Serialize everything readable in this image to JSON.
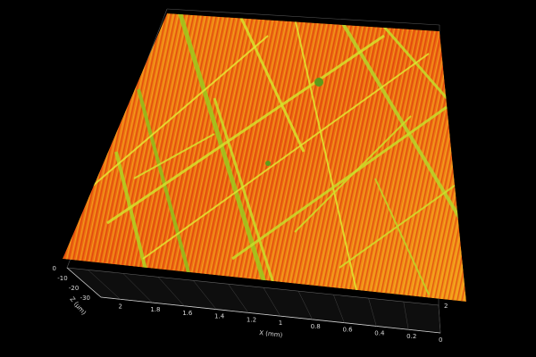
{
  "chart_data": {
    "type": "surface",
    "title": "",
    "x_axis": {
      "label": "X (mm)",
      "ticks": [
        "2",
        "1.8",
        "1.6",
        "1.4",
        "1.2",
        "1",
        "0.8",
        "0.6",
        "0.4",
        "0.2",
        "0"
      ],
      "range": [
        0,
        2
      ]
    },
    "y_axis": {
      "label": "",
      "ticks": [
        "2"
      ]
    },
    "z_axis": {
      "label": "Z (µm)",
      "ticks": [
        "0",
        "-10",
        "-20",
        "-30"
      ],
      "range": [
        -30,
        0
      ]
    },
    "colormap": [
      "#d9230f",
      "#f07a10",
      "#f5b82a",
      "#c8e02a",
      "#6fae1e"
    ],
    "background": "#000000",
    "grid": true
  }
}
